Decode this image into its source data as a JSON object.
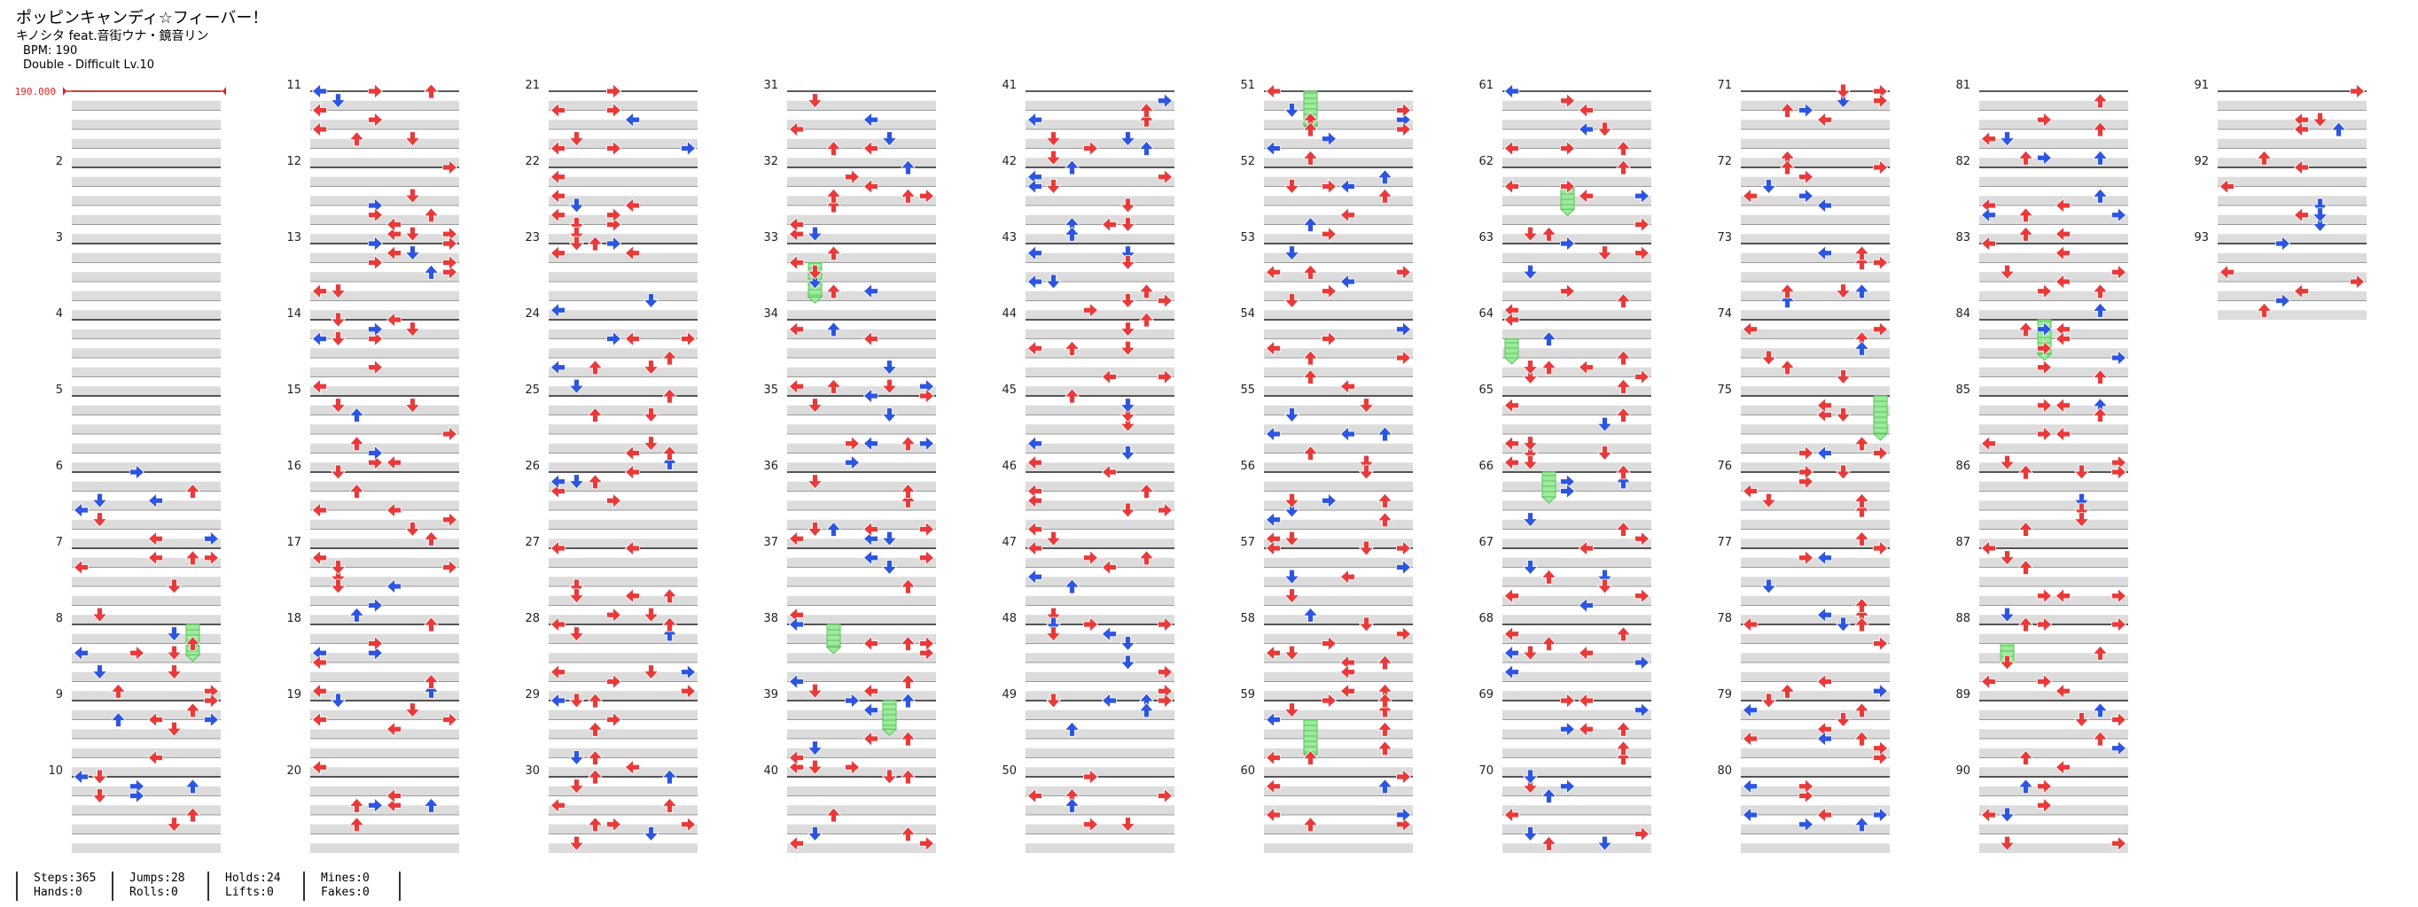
{
  "song": {
    "title": "ポッピンキャンディ☆フィーバー！",
    "artist": "キノシタ feat.音街ウナ・鏡音リン",
    "bpm_text": "BPM: 190",
    "difficulty_text": "Double - Difficult Lv.10"
  },
  "chart_data": {
    "type": "stepchart",
    "measure_count": 93,
    "measures_per_column": 10,
    "bpm_marker": "190.000",
    "colors": {
      "quarter": "#e83a3a",
      "eighth": "#2d55e0",
      "hold": "#8ee88e",
      "band": "#dcdcdc"
    }
  },
  "stats": [
    {
      "line1": "Steps:365",
      "line2": "Hands:0"
    },
    {
      "line1": "Jumps:28",
      "line2": "Rolls:0"
    },
    {
      "line1": "Holds:24",
      "line2": "Lifts:0"
    },
    {
      "line1": "Mines:0",
      "line2": "Fakes:0"
    }
  ]
}
